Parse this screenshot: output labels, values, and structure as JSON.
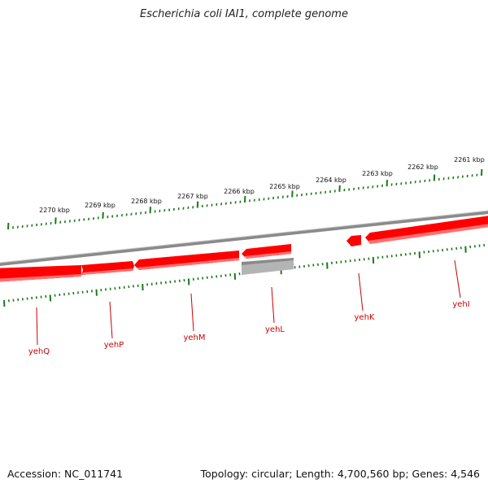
{
  "title": "Escherichia coli IAI1, complete genome",
  "footer": {
    "accession": "Accession: NC_011741",
    "summary": "Topology: circular; Length: 4,700,560 bp; Genes: 4,546"
  },
  "colors": {
    "gene_forward": "#ff0000",
    "gene_grey": "#b4b4b4",
    "backbone": "#8a8a8a",
    "tick": "#1a7a1a",
    "gene_label": "#cc0000",
    "scale_label": "#111111"
  },
  "scale_labels": [
    "2270 kbp",
    "2269 kbp",
    "2268 kbp",
    "2267 kbp",
    "2266 kbp",
    "2265 kbp",
    "2264 kbp",
    "2263 kbp",
    "2262 kbp",
    "2261 kbp"
  ],
  "genes": [
    {
      "name": "yehQ"
    },
    {
      "name": "yehP"
    },
    {
      "name": "yehM"
    },
    {
      "name": "yehL"
    },
    {
      "name": "yehK"
    },
    {
      "name": "yehI"
    }
  ]
}
